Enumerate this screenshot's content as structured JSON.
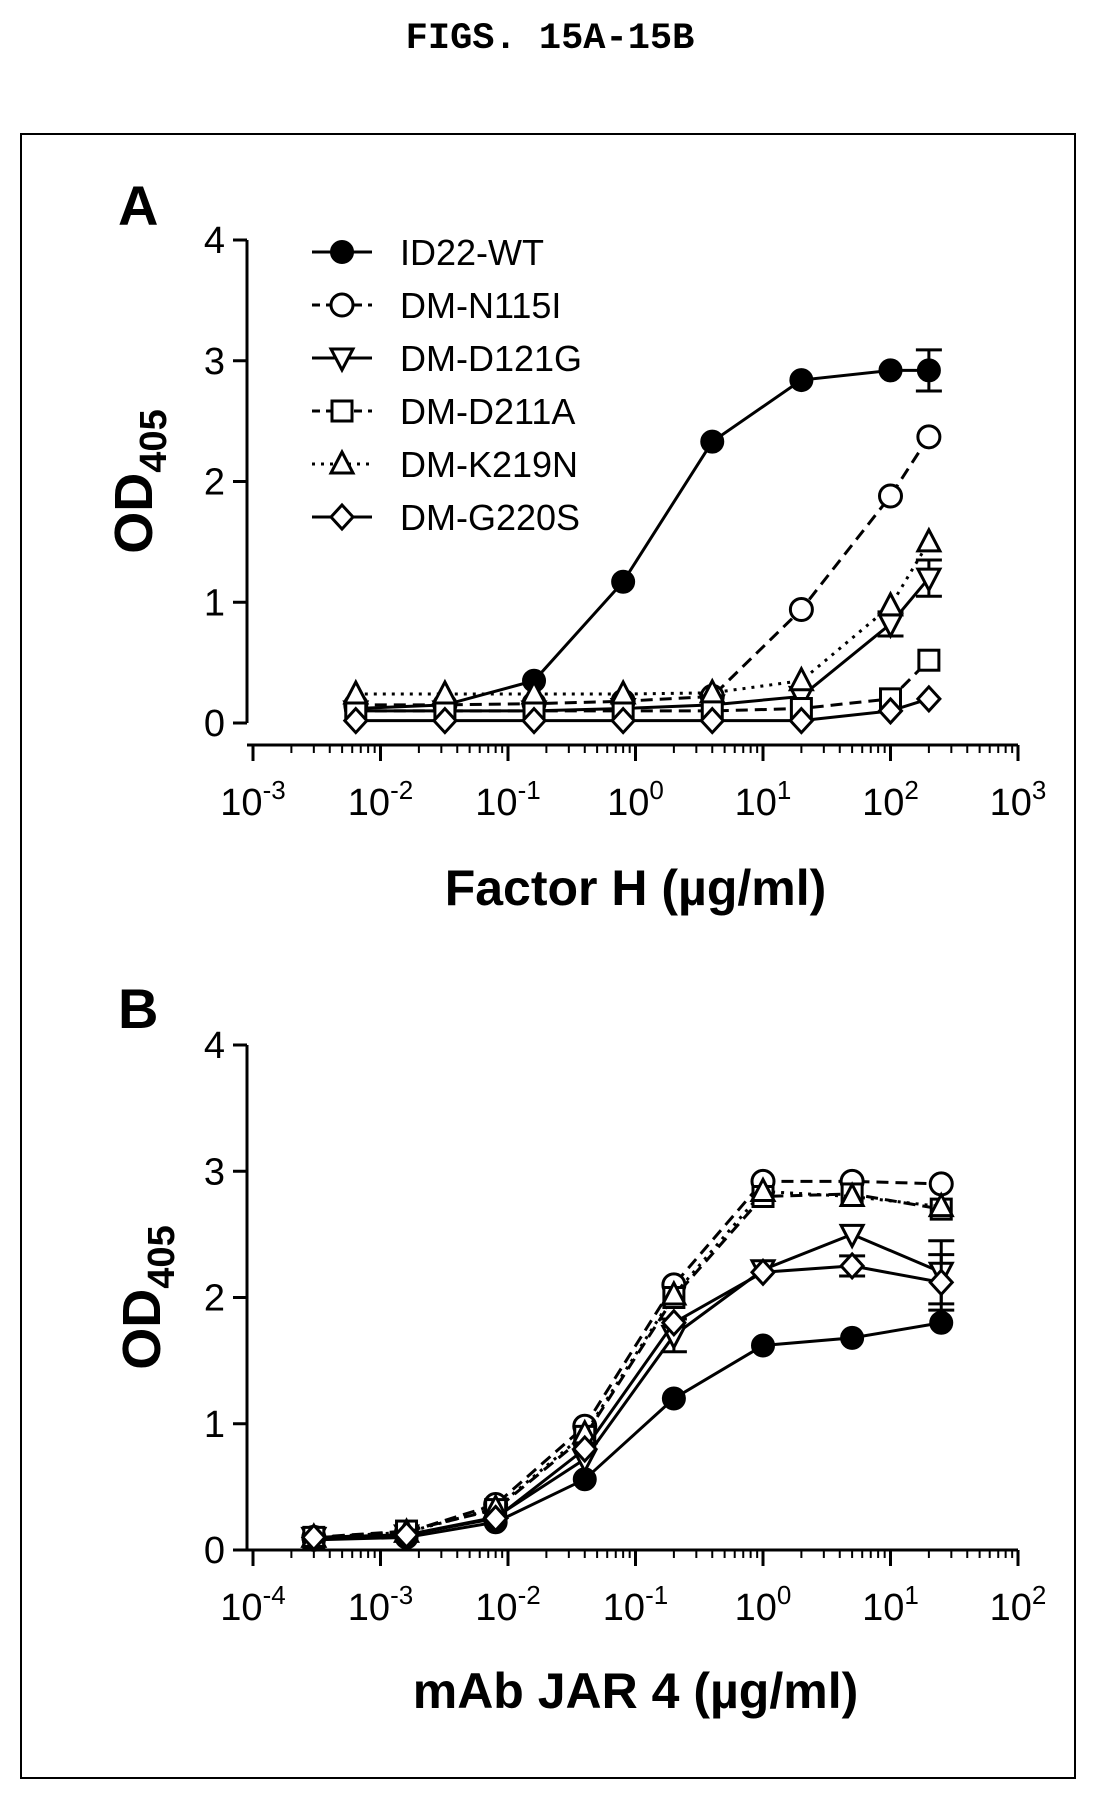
{
  "figure_title": "FIGS. 15A-15B",
  "chart_data": [
    {
      "type": "line",
      "panel_label": "A",
      "xlabel": "Factor H (µg/ml)",
      "ylabel_main": "OD",
      "ylabel_sub": "405",
      "x_scale": "log",
      "xlim": [
        0.001,
        1000
      ],
      "ylim": [
        0,
        4
      ],
      "x_ticks": [
        {
          "value": 0.001,
          "base": "10",
          "exp": "-3"
        },
        {
          "value": 0.01,
          "base": "10",
          "exp": "-2"
        },
        {
          "value": 0.1,
          "base": "10",
          "exp": "-1"
        },
        {
          "value": 1,
          "base": "10",
          "exp": "0"
        },
        {
          "value": 10,
          "base": "10",
          "exp": "1"
        },
        {
          "value": 100,
          "base": "10",
          "exp": "2"
        },
        {
          "value": 1000,
          "base": "10",
          "exp": "3"
        }
      ],
      "y_ticks": [
        0,
        1,
        2,
        3,
        4
      ],
      "legend_position": "top-left",
      "x": [
        0.0064,
        0.032,
        0.16,
        0.8,
        4,
        20,
        100,
        200
      ],
      "series": [
        {
          "name": "ID22-WT",
          "marker": "circle-filled",
          "line": "solid",
          "values": [
            0.12,
            0.15,
            0.35,
            1.17,
            2.33,
            2.84,
            2.92,
            2.92
          ],
          "err": [
            0,
            0,
            0,
            0,
            0,
            0,
            0,
            0.17
          ]
        },
        {
          "name": "DM-N115I",
          "marker": "circle-open",
          "line": "dashed",
          "values": [
            0.15,
            0.15,
            0.16,
            0.18,
            0.22,
            0.94,
            1.88,
            2.37
          ],
          "err": [
            0,
            0,
            0,
            0,
            0,
            0,
            0,
            0
          ]
        },
        {
          "name": "DM-D121G",
          "marker": "triangle-down-open",
          "line": "solid",
          "values": [
            0.1,
            0.1,
            0.1,
            0.12,
            0.15,
            0.22,
            0.82,
            1.2
          ],
          "err": [
            0,
            0,
            0,
            0,
            0,
            0,
            0.1,
            0.15
          ]
        },
        {
          "name": "DM-D211A",
          "marker": "square-open",
          "line": "dashed",
          "values": [
            0.1,
            0.1,
            0.1,
            0.1,
            0.1,
            0.12,
            0.2,
            0.52
          ],
          "err": [
            0,
            0,
            0,
            0,
            0,
            0,
            0,
            0
          ]
        },
        {
          "name": "DM-K219N",
          "marker": "triangle-up-open",
          "line": "dotted",
          "values": [
            0.24,
            0.24,
            0.24,
            0.24,
            0.25,
            0.35,
            0.97,
            1.5
          ],
          "err": [
            0,
            0,
            0,
            0,
            0,
            0,
            0,
            0
          ]
        },
        {
          "name": "DM-G220S",
          "marker": "diamond-open",
          "line": "solid",
          "values": [
            0.02,
            0.02,
            0.02,
            0.02,
            0.02,
            0.02,
            0.1,
            0.2
          ],
          "err": [
            0,
            0,
            0,
            0,
            0,
            0,
            0,
            0
          ]
        }
      ]
    },
    {
      "type": "line",
      "panel_label": "B",
      "xlabel": "mAb JAR 4 (µg/ml)",
      "ylabel_main": "OD",
      "ylabel_sub": "405",
      "x_scale": "log",
      "xlim": [
        0.0001,
        100
      ],
      "ylim": [
        0,
        4
      ],
      "x_ticks": [
        {
          "value": 0.0001,
          "base": "10",
          "exp": "-4"
        },
        {
          "value": 0.001,
          "base": "10",
          "exp": "-3"
        },
        {
          "value": 0.01,
          "base": "10",
          "exp": "-2"
        },
        {
          "value": 0.1,
          "base": "10",
          "exp": "-1"
        },
        {
          "value": 1,
          "base": "10",
          "exp": "0"
        },
        {
          "value": 10,
          "base": "10",
          "exp": "1"
        },
        {
          "value": 100,
          "base": "10",
          "exp": "2"
        }
      ],
      "y_ticks": [
        0,
        1,
        2,
        3,
        4
      ],
      "x": [
        0.0003,
        0.0016,
        0.008,
        0.04,
        0.2,
        1,
        5,
        25
      ],
      "series": [
        {
          "name": "ID22-WT",
          "marker": "circle-filled",
          "line": "solid",
          "values": [
            0.08,
            0.1,
            0.22,
            0.56,
            1.2,
            1.62,
            1.68,
            1.8
          ],
          "err": [
            0,
            0,
            0,
            0,
            0,
            0,
            0,
            0
          ]
        },
        {
          "name": "DM-N115I",
          "marker": "circle-open",
          "line": "dashed",
          "values": [
            0.1,
            0.14,
            0.36,
            0.98,
            2.1,
            2.92,
            2.92,
            2.9
          ],
          "err": [
            0,
            0,
            0,
            0,
            0,
            0,
            0,
            0
          ]
        },
        {
          "name": "DM-D121G",
          "marker": "triangle-down-open",
          "line": "solid",
          "values": [
            0.1,
            0.12,
            0.26,
            0.72,
            1.7,
            2.22,
            2.5,
            2.2
          ],
          "err": [
            0,
            0,
            0,
            0,
            0.13,
            0,
            0,
            0.25
          ]
        },
        {
          "name": "DM-D211A",
          "marker": "square-open",
          "line": "dashed",
          "values": [
            0.1,
            0.15,
            0.32,
            0.9,
            2.0,
            2.8,
            2.82,
            2.7
          ],
          "err": [
            0,
            0,
            0,
            0,
            0,
            0,
            0,
            0
          ]
        },
        {
          "name": "DM-K219N",
          "marker": "triangle-up-open",
          "line": "dotted",
          "values": [
            0.1,
            0.14,
            0.33,
            0.92,
            2.02,
            2.84,
            2.8,
            2.72
          ],
          "err": [
            0,
            0,
            0,
            0,
            0,
            0,
            0,
            0
          ]
        },
        {
          "name": "DM-G220S",
          "marker": "diamond-open",
          "line": "solid",
          "values": [
            0.1,
            0.12,
            0.25,
            0.8,
            1.8,
            2.2,
            2.25,
            2.12
          ],
          "err": [
            0,
            0,
            0,
            0,
            0,
            0,
            0.08,
            0.22
          ]
        }
      ]
    }
  ]
}
